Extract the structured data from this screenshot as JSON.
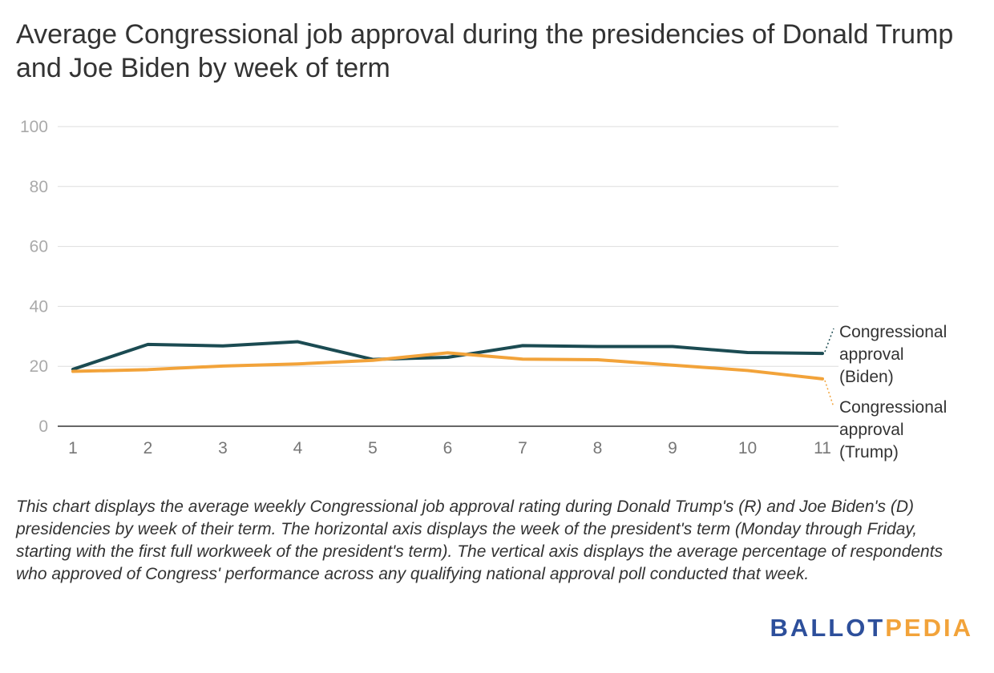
{
  "chart_data": {
    "type": "line",
    "title": "Average Congressional job approval during the presidencies of Donald Trump and Joe Biden by week of term",
    "categories": [
      "1",
      "2",
      "3",
      "4",
      "5",
      "6",
      "7",
      "8",
      "9",
      "10",
      "11"
    ],
    "yticks": [
      "0",
      "20",
      "40",
      "60",
      "80",
      "100"
    ],
    "ylim": [
      0,
      100
    ],
    "grid": true,
    "series": [
      {
        "name": "Congressional approval (Biden)",
        "label_lines": [
          "Congressional",
          "approval",
          "(Biden)"
        ],
        "color": "#1b4b52",
        "values": [
          19,
          27.3,
          26.8,
          28.2,
          22.3,
          23,
          26.9,
          26.6,
          26.6,
          24.6,
          24.3
        ]
      },
      {
        "name": "Congressional approval (Trump)",
        "label_lines": [
          "Congressional",
          "approval",
          "(Trump)"
        ],
        "color": "#f2a33a",
        "values": [
          18.3,
          18.9,
          20.1,
          20.8,
          22,
          24.5,
          22.4,
          22.2,
          20.4,
          18.6,
          15.8
        ]
      }
    ]
  },
  "caption": "This chart displays the average weekly Congressional job approval rating during Donald Trump's (R) and Joe Biden's (D) presidencies by week of their term. The horizontal axis displays the week of the president's term (Monday through Friday, starting with the first full workweek of the president's term). The vertical axis displays the average percentage of respondents who approved of Congress' performance across any qualifying national approval poll conducted that week.",
  "logo": {
    "part1": "BALLOT",
    "part2": "PEDIA"
  }
}
